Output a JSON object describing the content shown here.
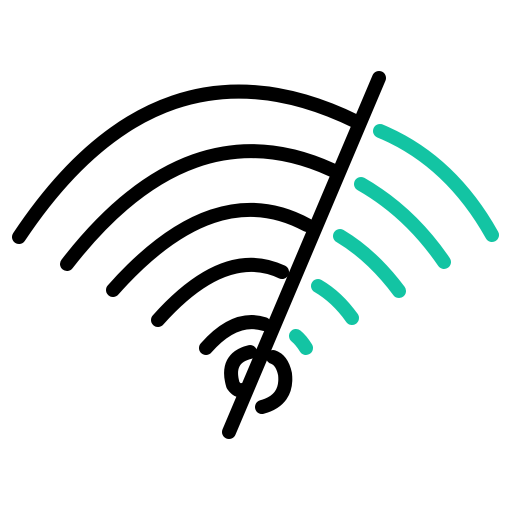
{
  "icon": {
    "name": "wifi-off-icon",
    "colors": {
      "dark": "#000000",
      "accent": "#13C4A3",
      "background": "#ffffff"
    }
  }
}
